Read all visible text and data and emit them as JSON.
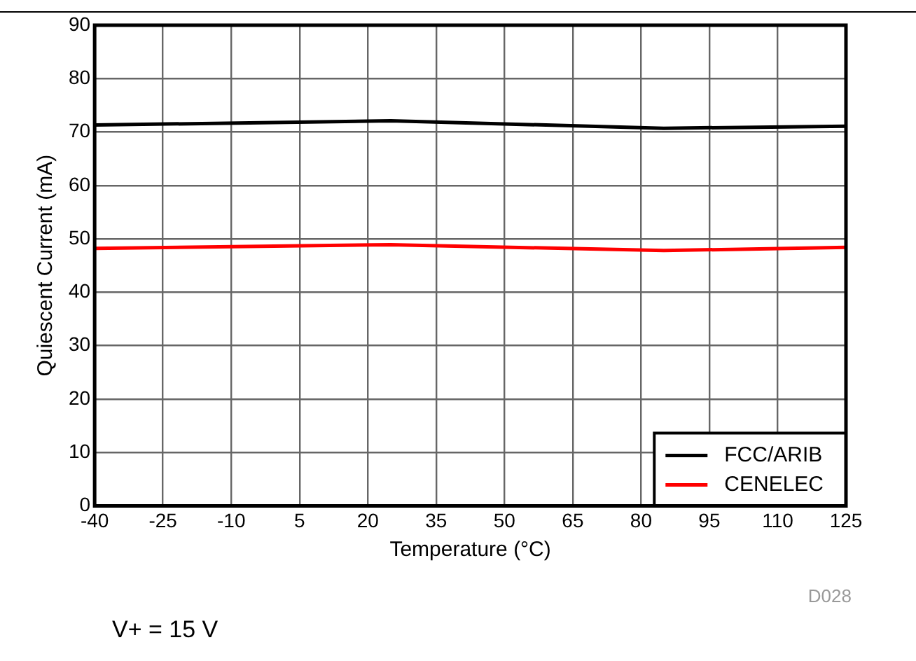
{
  "chart_data": {
    "type": "line",
    "xlabel": "Temperature (°C)",
    "ylabel": "Quiescent Current (mA)",
    "x": [
      -40,
      25,
      85,
      125
    ],
    "series": [
      {
        "name": "FCC/ARIB",
        "color": "#000000",
        "values": [
          71.3,
          72.1,
          70.7,
          71.1
        ]
      },
      {
        "name": "CENELEC",
        "color": "#ff0000",
        "values": [
          48.2,
          48.9,
          47.8,
          48.4
        ]
      }
    ],
    "xlim": [
      -40,
      125
    ],
    "xticks": [
      -40,
      -25,
      -10,
      5,
      20,
      35,
      50,
      65,
      80,
      95,
      110,
      125
    ],
    "ylim": [
      0,
      90
    ],
    "yticks": [
      0,
      10,
      20,
      30,
      40,
      50,
      60,
      70,
      80,
      90
    ],
    "grid": true,
    "legend": "bottom right",
    "marker": "none",
    "line_style": "solid",
    "annotations": [
      "D028",
      "V+ = 15 V"
    ]
  }
}
